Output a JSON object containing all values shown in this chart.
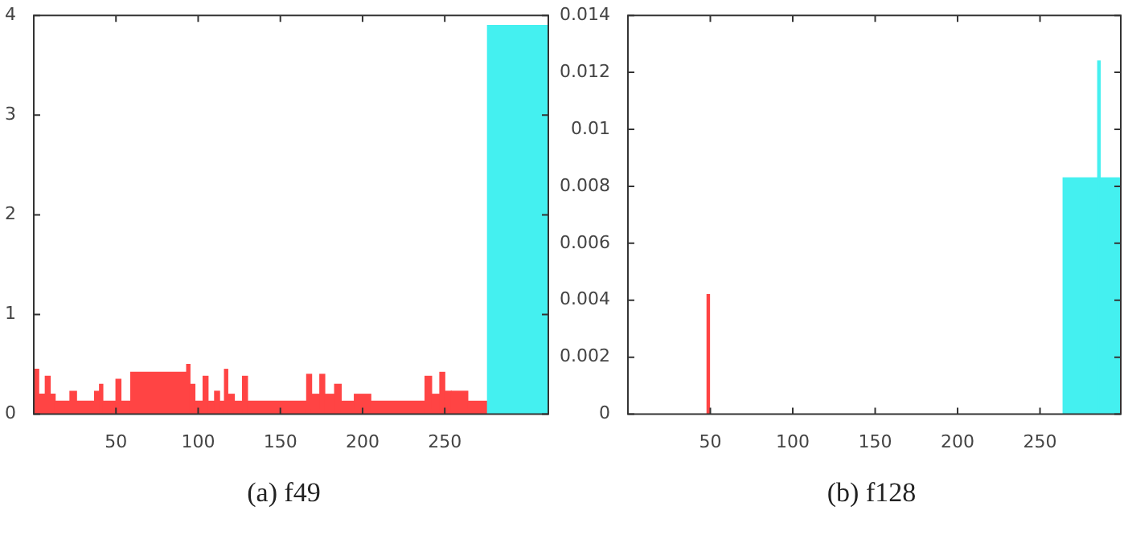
{
  "chart_data": [
    {
      "type": "histogram",
      "xlabel": "(a) f49",
      "bins": [
        0,
        3,
        7,
        10,
        13,
        22,
        26,
        37,
        40,
        42,
        50,
        53,
        59,
        93,
        95,
        98,
        103,
        106,
        110,
        113,
        116,
        118,
        122,
        127,
        130,
        166,
        169,
        174,
        177,
        183,
        187,
        195,
        205,
        238,
        242,
        247,
        250,
        254,
        264,
        276,
        313
      ],
      "values": [
        0.45,
        0.2,
        0.38,
        0.2,
        0.13,
        0.23,
        0.13,
        0.23,
        0.3,
        0.13,
        0.35,
        0.13,
        0.42,
        0.5,
        0.3,
        0.13,
        0.38,
        0.13,
        0.23,
        0.13,
        0.45,
        0.2,
        0.13,
        0.38,
        0.13,
        0.4,
        0.2,
        0.4,
        0.2,
        0.3,
        0.13,
        0.2,
        0.13,
        0.38,
        0.2,
        0.42,
        0.23,
        0.23,
        0.13,
        3.9
      ],
      "colors": [
        "#ff4444",
        "#ff4444",
        "#ff4444",
        "#ff4444",
        "#ff4444",
        "#ff4444",
        "#ff4444",
        "#ff4444",
        "#ff4444",
        "#ff4444",
        "#ff4444",
        "#ff4444",
        "#ff4444",
        "#ff4444",
        "#ff4444",
        "#ff4444",
        "#ff4444",
        "#ff4444",
        "#ff4444",
        "#ff4444",
        "#ff4444",
        "#ff4444",
        "#ff4444",
        "#ff4444",
        "#ff4444",
        "#ff4444",
        "#ff4444",
        "#ff4444",
        "#ff4444",
        "#ff4444",
        "#ff4444",
        "#ff4444",
        "#ff4444",
        "#ff4444",
        "#ff4444",
        "#ff4444",
        "#ff4444",
        "#ff4444",
        "#ff4444",
        "#44f0f0"
      ],
      "xlim": [
        0,
        313
      ],
      "ylim": [
        0,
        4
      ],
      "xticks": [
        50,
        100,
        150,
        200,
        250
      ],
      "yticks": [
        0,
        1,
        2,
        3,
        4
      ]
    },
    {
      "type": "histogram",
      "xlabel": "(b) f128",
      "bins": [
        0,
        48,
        49.5,
        264,
        285,
        286.5,
        299
      ],
      "values": [
        0,
        0.0042,
        0,
        0.0083,
        0.0124,
        0.0083
      ],
      "colors": [
        "#ff4444",
        "#ff4444",
        "#ff4444",
        "#44f0f0",
        "#44f0f0",
        "#44f0f0"
      ],
      "xlim": [
        0,
        299
      ],
      "ylim": [
        0,
        0.014
      ],
      "xticks": [
        50,
        100,
        150,
        200,
        250
      ],
      "yticks": [
        0,
        0.002,
        0.004,
        0.006,
        0.008,
        0.01,
        0.012,
        0.014
      ]
    }
  ]
}
